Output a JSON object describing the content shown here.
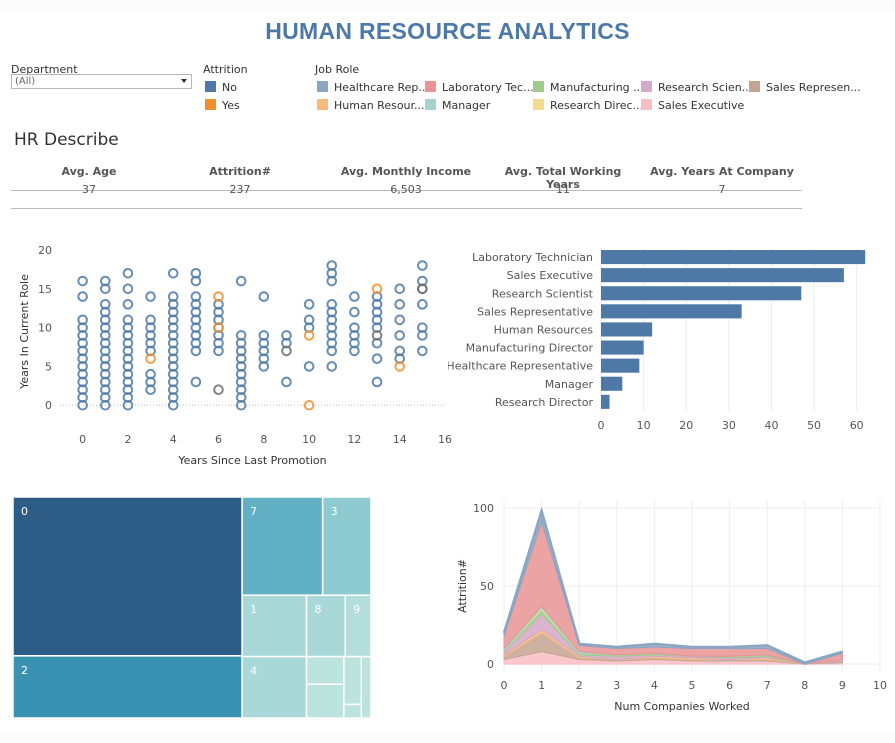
{
  "header": {
    "title": "HUMAN RESOURCE ANALYTICS"
  },
  "filters": {
    "department": {
      "label": "Department",
      "value": "(All)"
    },
    "attrition": {
      "label": "Attrition",
      "items": [
        {
          "label": "No",
          "color": "#4e79a7"
        },
        {
          "label": "Yes",
          "color": "#f28e2b"
        }
      ]
    },
    "job_role": {
      "label": "Job Role",
      "items": [
        {
          "label": "Healthcare Rep...",
          "color": "#8ba6c2"
        },
        {
          "label": "Laboratory Tec...",
          "color": "#e99394"
        },
        {
          "label": "Manufacturing ...",
          "color": "#9fcb8c"
        },
        {
          "label": "Research Scien...",
          "color": "#d5a7c8"
        },
        {
          "label": "Sales Represen...",
          "color": "#c4a591"
        },
        {
          "label": "Human Resour...",
          "color": "#f7bc7c"
        },
        {
          "label": "Manager",
          "color": "#a6d3cf"
        },
        {
          "label": "Research Direc...",
          "color": "#f2dd8b"
        },
        {
          "label": "Sales Executive",
          "color": "#f9bdc4"
        }
      ]
    }
  },
  "summary": {
    "title": "HR Describe",
    "columns": [
      {
        "label": "Avg. Age",
        "value": "37"
      },
      {
        "label": "Attrition#",
        "value": "237"
      },
      {
        "label": "Avg. Monthly Income",
        "value": "6,503"
      },
      {
        "label": "Avg. Total Working Years",
        "value": "11"
      },
      {
        "label": "Avg. Years At Company",
        "value": "7"
      }
    ]
  },
  "colors": {
    "no": "#4e79a7",
    "yes": "#f28e2b",
    "bar": "#4e79a7"
  },
  "chart_data": [
    {
      "type": "scatter",
      "title": "",
      "xlabel": "Years Since Last Promotion",
      "ylabel": "Years In Current Role",
      "xlim": [
        -1,
        16
      ],
      "ylim": [
        -1,
        20
      ],
      "xticks": [
        0,
        2,
        4,
        6,
        8,
        10,
        12,
        14,
        16
      ],
      "yticks": [
        0,
        5,
        10,
        15,
        20
      ],
      "series": [
        {
          "name": "No",
          "points": [
            {
              "x": 0,
              "ys": [
                0,
                1,
                2,
                3,
                4,
                5,
                6,
                7,
                8,
                9,
                10,
                11,
                14,
                16
              ]
            },
            {
              "x": 1,
              "ys": [
                0,
                1,
                2,
                3,
                4,
                5,
                6,
                7,
                8,
                9,
                10,
                11,
                12,
                13,
                15,
                16
              ]
            },
            {
              "x": 2,
              "ys": [
                0,
                1,
                2,
                3,
                4,
                5,
                6,
                7,
                8,
                9,
                10,
                11,
                13,
                15,
                17
              ]
            },
            {
              "x": 3,
              "ys": [
                2,
                3,
                4,
                7,
                8,
                9,
                10,
                11,
                14
              ]
            },
            {
              "x": 4,
              "ys": [
                0,
                1,
                2,
                3,
                4,
                5,
                6,
                7,
                8,
                9,
                10,
                11,
                12,
                13,
                14,
                17
              ]
            },
            {
              "x": 5,
              "ys": [
                3,
                7,
                8,
                9,
                10,
                11,
                12,
                13,
                14,
                16,
                17
              ]
            },
            {
              "x": 6,
              "ys": [
                7,
                8,
                9,
                10,
                11,
                12,
                13
              ]
            },
            {
              "x": 7,
              "ys": [
                0,
                1,
                2,
                3,
                4,
                5,
                6,
                7,
                8,
                9,
                16
              ]
            },
            {
              "x": 8,
              "ys": [
                5,
                6,
                7,
                8,
                9,
                14
              ]
            },
            {
              "x": 9,
              "ys": [
                3,
                8,
                9
              ]
            },
            {
              "x": 10,
              "ys": [
                5,
                10,
                11,
                13
              ]
            },
            {
              "x": 11,
              "ys": [
                5,
                7,
                8,
                9,
                10,
                11,
                12,
                13,
                16,
                17,
                18
              ]
            },
            {
              "x": 12,
              "ys": [
                7,
                8,
                9,
                10,
                12,
                14
              ]
            },
            {
              "x": 13,
              "ys": [
                3,
                6,
                8,
                10,
                11,
                12,
                13,
                14
              ]
            },
            {
              "x": 14,
              "ys": [
                6,
                7,
                9,
                11,
                13,
                15
              ]
            },
            {
              "x": 15,
              "ys": [
                7,
                9,
                10,
                13,
                15,
                16,
                18
              ]
            }
          ]
        },
        {
          "name": "Yes",
          "points": [
            {
              "x": 3,
              "ys": [
                6
              ]
            },
            {
              "x": 6,
              "ys": [
                10,
                14
              ]
            },
            {
              "x": 10,
              "ys": [
                0,
                9
              ]
            },
            {
              "x": 13,
              "ys": [
                15
              ]
            },
            {
              "x": 14,
              "ys": [
                5
              ]
            }
          ]
        },
        {
          "name": "Both",
          "points": [
            {
              "x": 6,
              "ys": [
                2
              ]
            },
            {
              "x": 9,
              "ys": [
                7
              ]
            },
            {
              "x": 13,
              "ys": [
                9
              ]
            },
            {
              "x": 15,
              "ys": [
                15
              ]
            }
          ]
        }
      ]
    },
    {
      "type": "bar",
      "orientation": "horizontal",
      "title": "",
      "xlabel": "",
      "ylabel": "",
      "xlim": [
        0,
        65
      ],
      "xticks": [
        0,
        10,
        20,
        30,
        40,
        50,
        60
      ],
      "categories": [
        "Laboratory Technician",
        "Sales Executive",
        "Research Scientist",
        "Sales Representative",
        "Human Resources",
        "Manufacturing Director",
        "Healthcare Representative",
        "Manager",
        "Research Director"
      ],
      "values": [
        62,
        57,
        47,
        33,
        12,
        10,
        9,
        5,
        2
      ]
    },
    {
      "type": "treemap",
      "title": "",
      "items": [
        {
          "label": "0",
          "value": 46,
          "color": "#2d5c87"
        },
        {
          "label": "2",
          "value": 18,
          "color": "#3a92b3"
        },
        {
          "label": "7",
          "value": 10,
          "color": "#62b0c4"
        },
        {
          "label": "3",
          "value": 6,
          "color": "#8ecbd1"
        },
        {
          "label": "1",
          "value": 5,
          "color": "#a8d8d8"
        },
        {
          "label": "4",
          "value": 5,
          "color": "#a8d8d8"
        },
        {
          "label": "8",
          "value": 3,
          "color": "#a8d8d8"
        },
        {
          "label": "9",
          "value": 2,
          "color": "#b3dedc"
        },
        {
          "label": "",
          "value": 1,
          "color": "#bde3df"
        },
        {
          "label": "",
          "value": 1,
          "color": "#bde3df"
        },
        {
          "label": "",
          "value": 1,
          "color": "#bde3df"
        },
        {
          "label": "",
          "value": 1,
          "color": "#bde3df"
        },
        {
          "label": "",
          "value": 1,
          "color": "#bde3df"
        }
      ]
    },
    {
      "type": "area",
      "stacked": true,
      "title": "",
      "xlabel": "Num Companies Worked",
      "ylabel": "Attrition#",
      "xlim": [
        0,
        10
      ],
      "ylim": [
        -5,
        105
      ],
      "xticks": [
        0,
        1,
        2,
        3,
        4,
        5,
        6,
        7,
        8,
        9,
        10
      ],
      "yticks": [
        0,
        50,
        100
      ],
      "x": [
        0,
        1,
        2,
        3,
        4,
        5,
        6,
        7,
        8,
        9
      ],
      "series": [
        {
          "name": "Sales Executive",
          "color": "#f9bdc4",
          "values": [
            3,
            8,
            3,
            2,
            3,
            2,
            2,
            2,
            0,
            1
          ]
        },
        {
          "name": "Sales Representative",
          "color": "#c4a591",
          "values": [
            2,
            12,
            1,
            1,
            1,
            1,
            1,
            1,
            0,
            1
          ]
        },
        {
          "name": "Human Resources",
          "color": "#f7bc7c",
          "values": [
            1,
            2,
            1,
            0,
            1,
            1,
            0,
            1,
            0,
            0
          ]
        },
        {
          "name": "Research Scientist",
          "color": "#d5a7c8",
          "values": [
            2,
            10,
            1,
            2,
            1,
            1,
            1,
            1,
            0,
            1
          ]
        },
        {
          "name": "Manufacturing Director",
          "color": "#9fcb8c",
          "values": [
            1,
            3,
            1,
            1,
            1,
            0,
            1,
            1,
            0,
            0
          ]
        },
        {
          "name": "Research Director",
          "color": "#f2dd8b",
          "values": [
            0,
            1,
            0,
            0,
            0,
            0,
            0,
            0,
            0,
            0
          ]
        },
        {
          "name": "Manager",
          "color": "#a6d3cf",
          "values": [
            1,
            1,
            1,
            0,
            0,
            0,
            0,
            0,
            0,
            0
          ]
        },
        {
          "name": "Laboratory Technician",
          "color": "#e99394",
          "values": [
            8,
            54,
            4,
            4,
            4,
            5,
            5,
            4,
            0,
            4
          ]
        },
        {
          "name": "Healthcare Representative",
          "color": "#8ba6c2",
          "values": [
            2,
            7,
            1,
            1,
            2,
            1,
            1,
            2,
            1,
            1
          ]
        }
      ]
    }
  ]
}
